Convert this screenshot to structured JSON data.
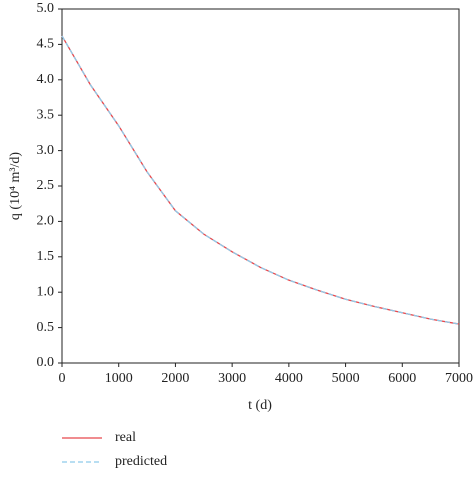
{
  "chart_data": {
    "type": "line",
    "xlabel": "t (d)",
    "ylabel": "q (10⁴ m³/d)",
    "x": [
      0,
      500,
      1000,
      1500,
      2000,
      2500,
      3000,
      3500,
      4000,
      4500,
      5000,
      5500,
      6000,
      6500,
      7000
    ],
    "series": [
      {
        "name": "real",
        "color": "#e8474c",
        "dash": false,
        "values": [
          4.62,
          3.93,
          3.35,
          2.7,
          2.15,
          1.82,
          1.57,
          1.35,
          1.17,
          1.03,
          0.9,
          0.8,
          0.71,
          0.62,
          0.55
        ]
      },
      {
        "name": "predicted",
        "color": "#8ecbea",
        "dash": true,
        "values": [
          4.62,
          3.93,
          3.35,
          2.7,
          2.15,
          1.82,
          1.57,
          1.35,
          1.17,
          1.03,
          0.9,
          0.8,
          0.71,
          0.62,
          0.55
        ]
      }
    ],
    "xlim": [
      0,
      7000
    ],
    "xticks": [
      0,
      1000,
      2000,
      3000,
      4000,
      5000,
      6000,
      7000
    ],
    "ylim": [
      0,
      5
    ],
    "yticks": [
      {
        "value": 0,
        "label": "0.0"
      },
      {
        "value": 0.5,
        "label": "0.5"
      },
      {
        "value": 1,
        "label": "1.0"
      },
      {
        "value": 1.5,
        "label": "1.5"
      },
      {
        "value": 2,
        "label": "2.0"
      },
      {
        "value": 2.5,
        "label": "2.5"
      },
      {
        "value": 3,
        "label": "3.0"
      },
      {
        "value": 3.5,
        "label": "3.5"
      },
      {
        "value": 4,
        "label": "4.0"
      },
      {
        "value": 4.5,
        "label": "4.5"
      },
      {
        "value": 5,
        "label": "5.0"
      }
    ],
    "grid": false,
    "legend": "bottom-left"
  }
}
